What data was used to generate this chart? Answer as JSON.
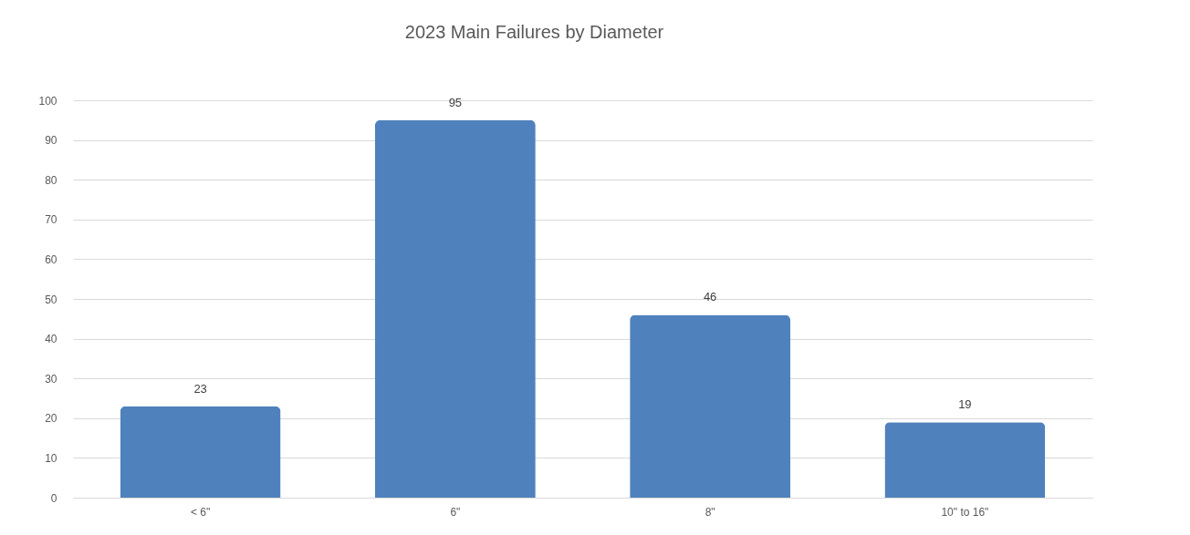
{
  "chart_data": {
    "type": "bar",
    "title": "2023 Main Failures by Diameter",
    "categories": [
      "< 6\"",
      "6\"",
      "8\"",
      "10\" to 16\""
    ],
    "values": [
      23,
      95,
      46,
      19
    ],
    "color": "#4f81bd",
    "ylim": [
      0,
      100
    ],
    "yticks": [
      0,
      10,
      20,
      30,
      40,
      50,
      60,
      70,
      80,
      90,
      100
    ],
    "grid": "y",
    "data_labels": true
  }
}
